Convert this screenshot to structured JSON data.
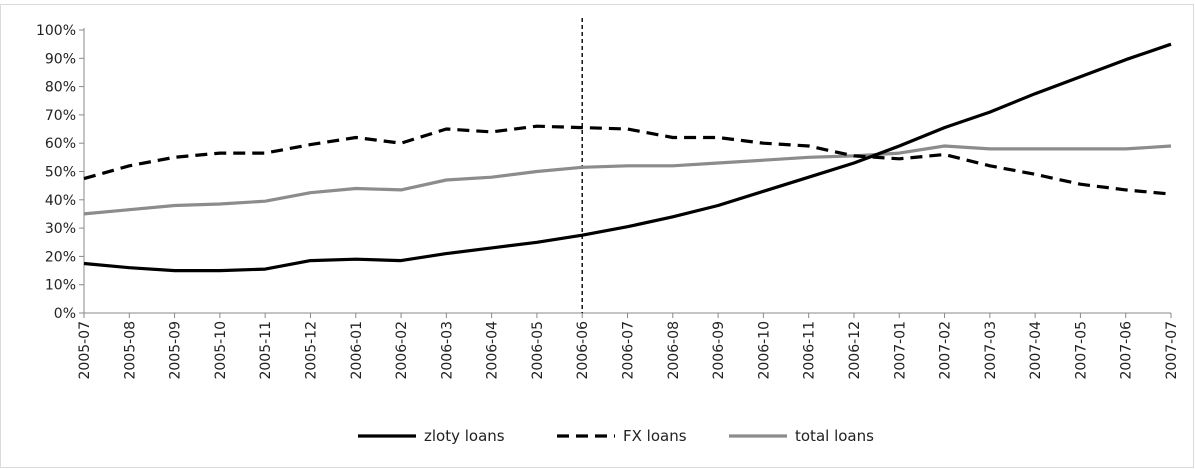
{
  "chart_data": {
    "type": "line",
    "title": "",
    "xlabel": "",
    "ylabel": "",
    "ylim": [
      0,
      100
    ],
    "y_ticks": [
      0,
      10,
      20,
      30,
      40,
      50,
      60,
      70,
      80,
      90,
      100
    ],
    "y_tick_labels": [
      "0%",
      "10%",
      "20%",
      "30%",
      "40%",
      "50%",
      "60%",
      "70%",
      "80%",
      "90%",
      "100%"
    ],
    "categories": [
      "2005-07",
      "2005-08",
      "2005-09",
      "2005-10",
      "2005-11",
      "2005-12",
      "2006-01",
      "2006-02",
      "2006-03",
      "2006-04",
      "2006-05",
      "2006-06",
      "2006-07",
      "2006-08",
      "2006-09",
      "2006-10",
      "2006-11",
      "2006-12",
      "2007-01",
      "2007-02",
      "2007-03",
      "2007-04",
      "2007-05",
      "2007-06",
      "2007-07"
    ],
    "grid": false,
    "legend_position": "bottom",
    "reference_line": {
      "category": "2006-06",
      "style": "dashed",
      "color": "#000000"
    },
    "series": [
      {
        "name": "zloty loans",
        "color": "#000000",
        "style": "solid",
        "values": [
          17.5,
          16,
          15,
          15,
          15.5,
          18.5,
          19,
          18.5,
          21,
          23,
          25,
          27.5,
          30.5,
          34,
          38,
          43,
          48,
          53,
          59,
          65.5,
          71,
          77.5,
          83.5,
          89.5,
          95
        ]
      },
      {
        "name": "FX loans",
        "color": "#000000",
        "style": "dashed",
        "values": [
          47.5,
          52,
          55,
          56.5,
          56.5,
          59.5,
          62,
          60,
          65,
          64,
          66,
          65.5,
          65,
          62,
          62,
          60,
          59,
          55.5,
          54.5,
          56,
          52,
          49,
          45.5,
          43.5,
          42
        ]
      },
      {
        "name": "total loans",
        "color": "#8c8c8c",
        "style": "solid",
        "values": [
          35,
          36.5,
          38,
          38.5,
          39.5,
          42.5,
          44,
          43.5,
          47,
          48,
          50,
          51.5,
          52,
          52,
          53,
          54,
          55,
          55.5,
          56.5,
          59,
          58,
          58,
          58,
          58,
          59
        ]
      }
    ]
  }
}
